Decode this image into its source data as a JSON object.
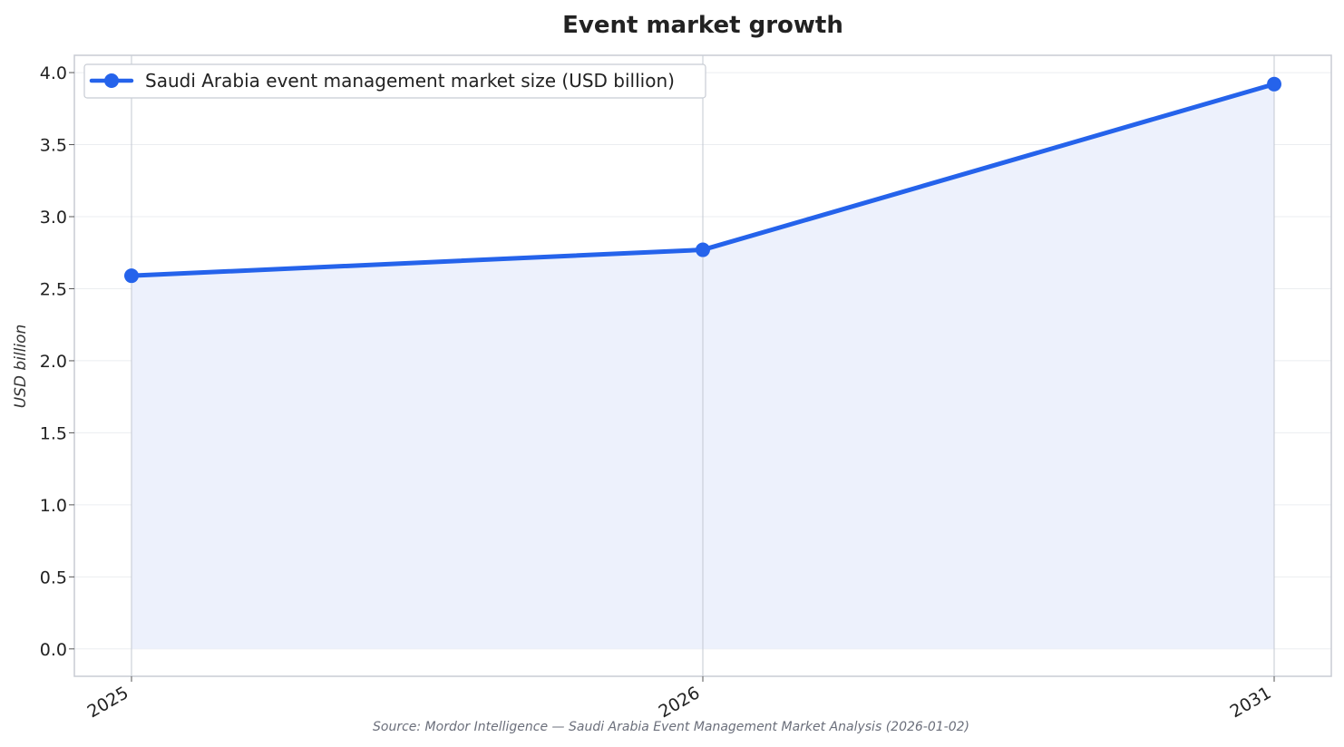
{
  "chart_data": {
    "type": "line",
    "title": "Event market growth",
    "ylabel": "USD billion",
    "xlabel": "",
    "x": [
      "2025",
      "2026",
      "2031"
    ],
    "series": [
      {
        "name": "Saudi Arabia event management market size (USD billion)",
        "values": [
          2.59,
          2.77,
          3.92
        ]
      }
    ],
    "ylim": [
      -0.19,
      4.12
    ],
    "yticks": [
      "0.0",
      "0.5",
      "1.0",
      "1.5",
      "2.0",
      "2.5",
      "3.0",
      "3.5",
      "4.0"
    ],
    "grid": true,
    "area_fill": true,
    "legend_position": "top-left",
    "line_color": "#2563eb",
    "fill_color": "#edf1fc",
    "source": "Source: Mordor Intelligence — Saudi Arabia Event Management Market Analysis (2026-01-02)"
  }
}
